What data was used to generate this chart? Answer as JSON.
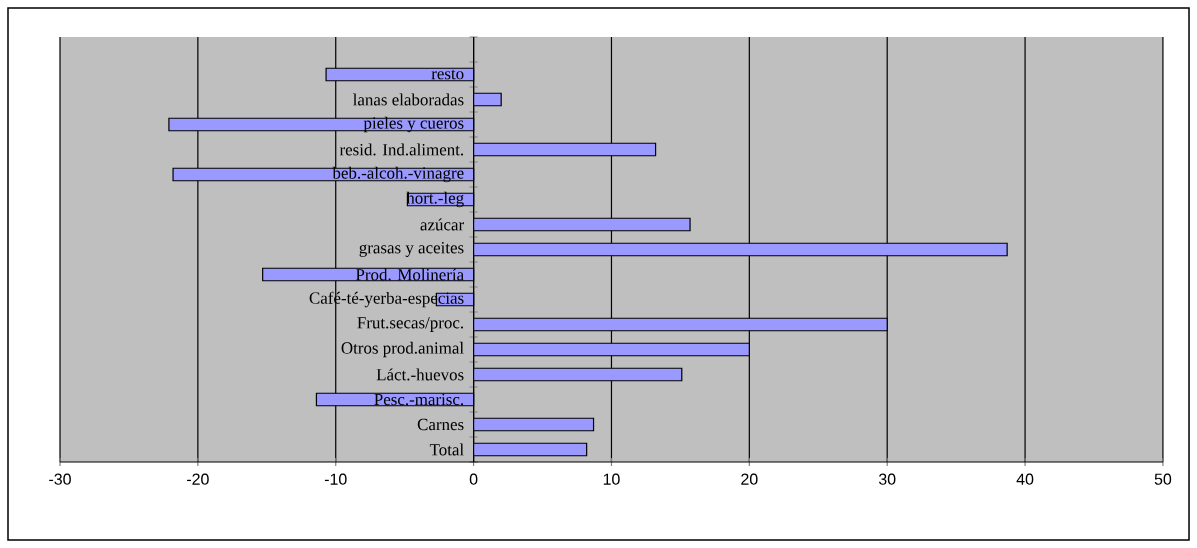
{
  "chart_data": {
    "type": "bar",
    "orientation": "horizontal",
    "categories": [
      null,
      "resto",
      "lanas elaboradas",
      "pieles y cueros",
      "resid. Ind.aliment.",
      "beb.-alcoh.-vinagre",
      "hort.-leg",
      "azúcar",
      "grasas y aceites",
      "Prod. Molinería",
      "Café-té-yerba-especias",
      "Frut.secas/proc.",
      "Otros prod.animal",
      "Láct.-huevos",
      "Pesc.-marisc.",
      "Carnes",
      "Total"
    ],
    "values": [
      null,
      -10.7,
      2.0,
      -22.1,
      13.2,
      -21.8,
      -4.8,
      15.7,
      38.7,
      -15.3,
      -2.7,
      30.0,
      20.0,
      15.1,
      -11.4,
      8.7,
      8.2
    ],
    "color": "#9999ff",
    "xlim": [
      -30,
      50
    ],
    "xticks": [
      -30,
      -20,
      -10,
      0,
      10,
      20,
      30,
      40,
      50
    ],
    "grid": "x"
  }
}
